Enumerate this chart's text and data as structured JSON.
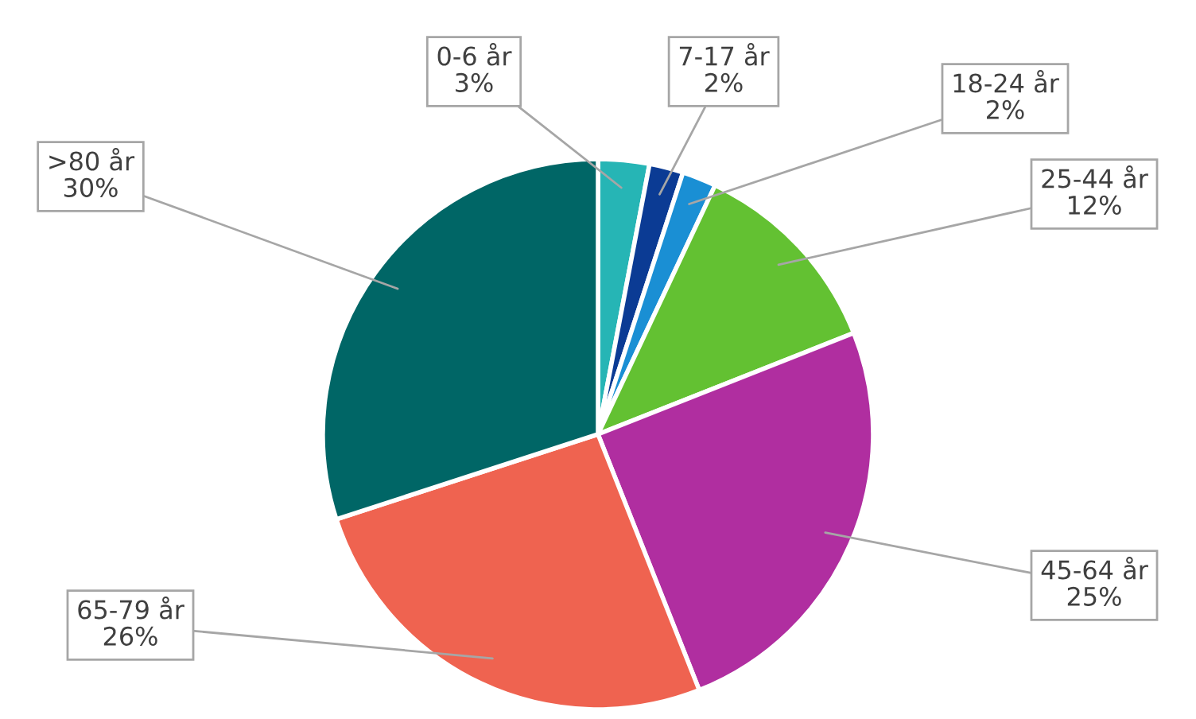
{
  "chart_data": {
    "type": "pie",
    "categories": [
      "0-6 år",
      "7-17 år",
      "18-24 år",
      "25-44 år",
      "45-64 år",
      "65-79 år",
      ">80 år"
    ],
    "values": [
      3,
      2,
      2,
      12,
      25,
      26,
      30
    ],
    "value_labels": [
      "3%",
      "2%",
      "2%",
      "12%",
      "25%",
      "26%",
      "30%"
    ],
    "colors": [
      "#26b5b5",
      "#0b3b94",
      "#1a8fd4",
      "#63c132",
      "#b02ea0",
      "#ef6350",
      "#006666"
    ],
    "legend": false
  }
}
